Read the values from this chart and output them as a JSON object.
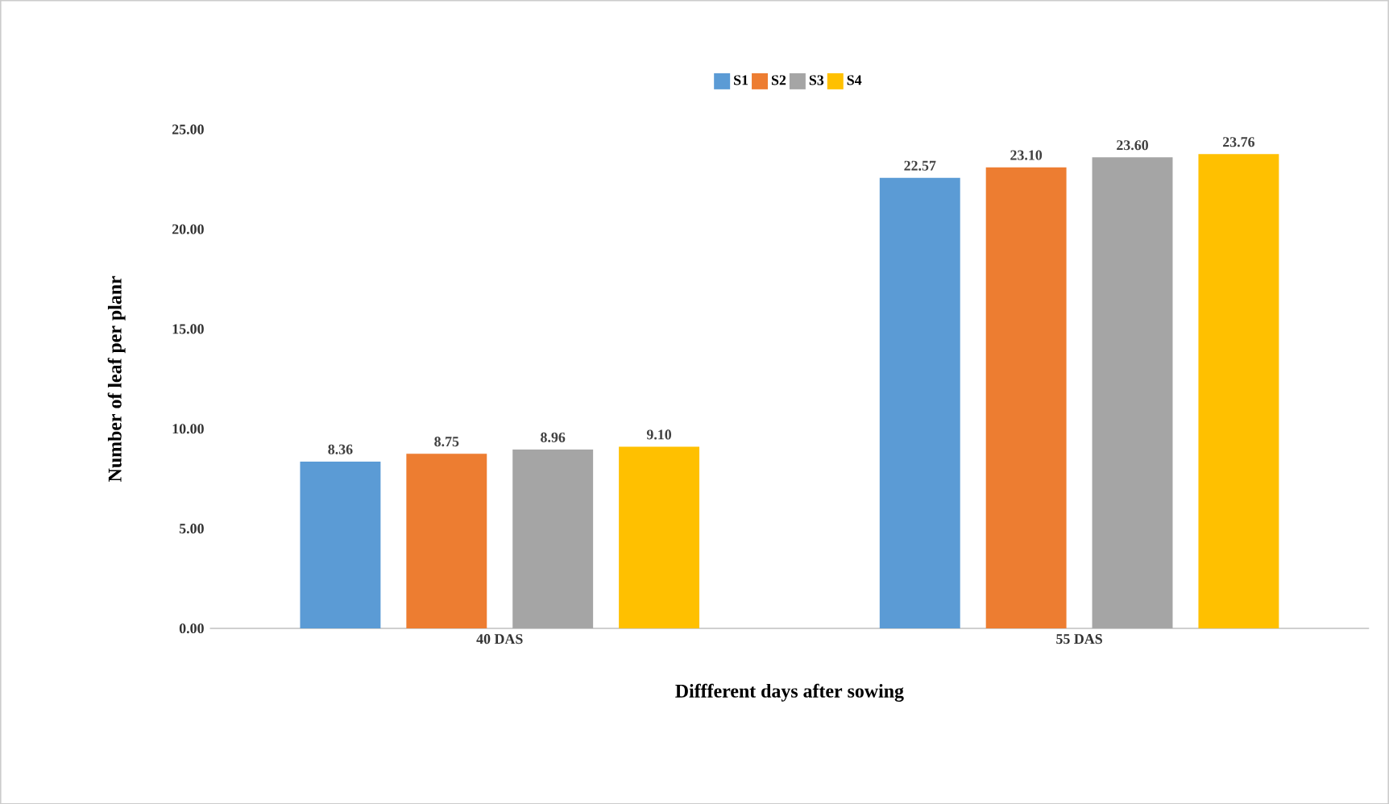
{
  "chart_data": {
    "type": "bar",
    "xlabel": "Diffferent days after sowing",
    "ylabel": "Number of leaf per planr",
    "categories": [
      "40 DAS",
      "55 DAS"
    ],
    "series": [
      {
        "name": "S1",
        "color": "#5b9bd5",
        "values": [
          8.36,
          22.57
        ],
        "value_labels": [
          "8.36",
          "22.57"
        ]
      },
      {
        "name": "S2",
        "color": "#ed7d31",
        "values": [
          8.75,
          23.1
        ],
        "value_labels": [
          "8.75",
          "23.10"
        ]
      },
      {
        "name": "S3",
        "color": "#a5a5a5",
        "values": [
          8.96,
          23.6
        ],
        "value_labels": [
          "8.96",
          "23.60"
        ]
      },
      {
        "name": "S4",
        "color": "#ffc000",
        "values": [
          9.1,
          23.76
        ],
        "value_labels": [
          "9.10",
          "23.76"
        ]
      }
    ],
    "ylim": [
      0,
      25
    ],
    "yticks": [
      {
        "value": 0,
        "label": "0.00"
      },
      {
        "value": 5,
        "label": "5.00"
      },
      {
        "value": 10,
        "label": "10.00"
      },
      {
        "value": 15,
        "label": "15.00"
      },
      {
        "value": 20,
        "label": "20.00"
      },
      {
        "value": 25,
        "label": "25.00"
      }
    ],
    "legend": "top"
  }
}
